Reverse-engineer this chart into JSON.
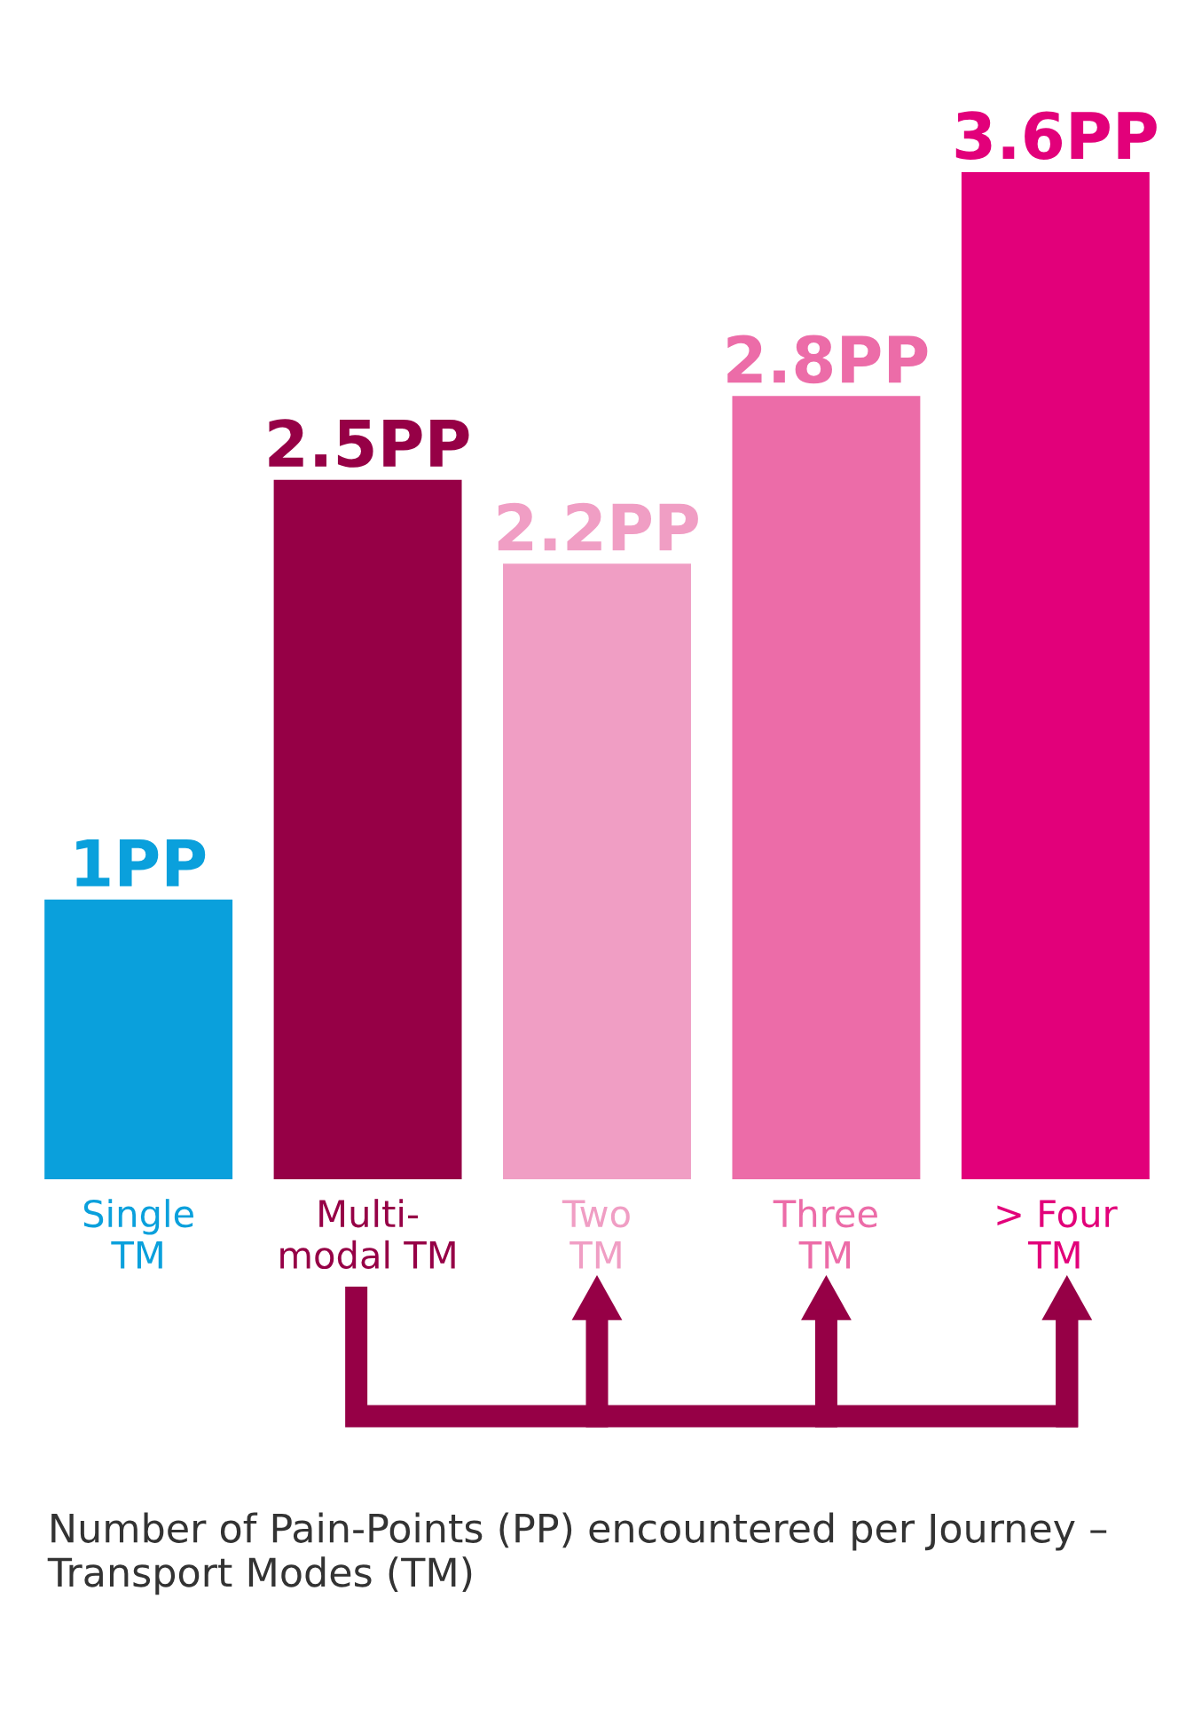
{
  "chart_data": {
    "type": "bar",
    "categories": [
      "Single\nTM",
      "Multi-\nmodal TM",
      "Two\nTM",
      "Three\nTM",
      "> Four\nTM"
    ],
    "values": [
      1,
      2.5,
      2.2,
      2.8,
      3.6
    ],
    "colors": [
      "#0aa0dc",
      "#960046",
      "#f09ec4",
      "#ec6ca8",
      "#e2007a"
    ],
    "value_labels": [
      "1PP",
      "2.5PP",
      "2.2PP",
      "2.8PP",
      "3.6PP"
    ],
    "annotations": [
      "Number of Pain-Points (PP) encountered per Journey – Transport Modes (TM)"
    ],
    "grid": false,
    "legend": false
  }
}
